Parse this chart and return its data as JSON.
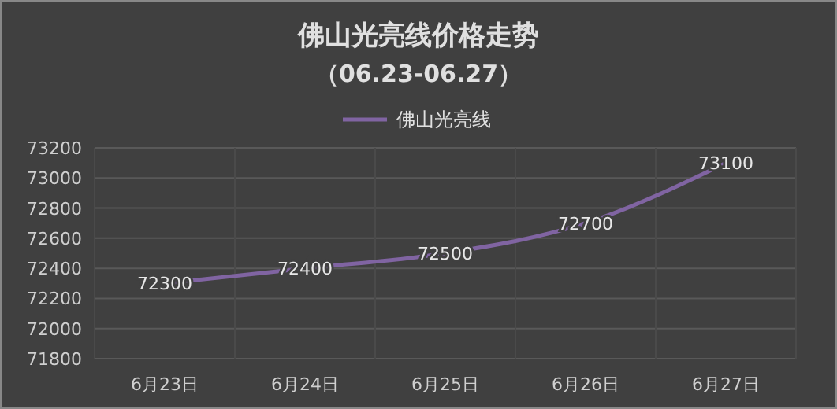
{
  "chart_data": {
    "type": "line",
    "title": "佛山光亮线价格走势",
    "subtitle": "（06.23-06.27）",
    "categories": [
      "6月23日",
      "6月24日",
      "6月25日",
      "6月26日",
      "6月27日"
    ],
    "series": [
      {
        "name": "佛山光亮线",
        "color": "#8064a2",
        "values": [
          72300,
          72400,
          72500,
          72700,
          73100
        ]
      }
    ],
    "ylim": [
      71800,
      73200
    ],
    "yticks": [
      71800,
      72000,
      72200,
      72400,
      72600,
      72800,
      73000,
      73200
    ],
    "grid": true,
    "legend": "top",
    "data_labels": true,
    "marker": "none",
    "line_style": "solid"
  }
}
